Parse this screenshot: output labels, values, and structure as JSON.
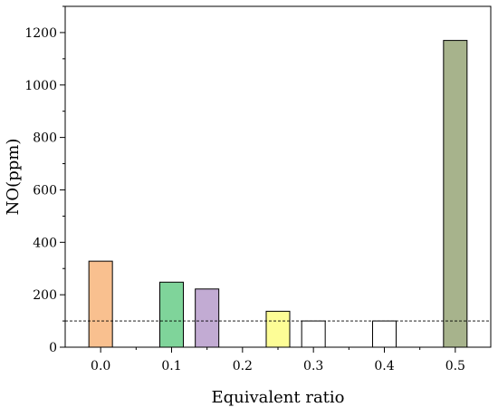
{
  "chart_data": {
    "type": "bar",
    "xlabel": "Equivalent ratio",
    "ylabel": "NO(ppm)",
    "xlim": [
      -0.05,
      0.55
    ],
    "ylim": [
      0,
      1300
    ],
    "x_ticks": [
      "0.0",
      "0.1",
      "0.2",
      "0.3",
      "0.4",
      "0.5"
    ],
    "y_ticks": [
      "0",
      "200",
      "400",
      "600",
      "800",
      "1000",
      "1200"
    ],
    "grid": false,
    "bars": [
      {
        "x": 0.0,
        "value": 328,
        "color": "#F9C08F"
      },
      {
        "x": 0.1,
        "value": 248,
        "color": "#7FD49A"
      },
      {
        "x": 0.15,
        "value": 222,
        "color": "#C2ABD3"
      },
      {
        "x": 0.25,
        "value": 137,
        "color": "#FDFD96"
      },
      {
        "x": 0.3,
        "value": 100,
        "color": "#FFFFFF"
      },
      {
        "x": 0.4,
        "value": 100,
        "color": "#FFFFFF"
      },
      {
        "x": 0.5,
        "value": 1170,
        "color": "#A7B38C"
      }
    ],
    "reference_line": {
      "value": 100,
      "style": "dashed"
    }
  }
}
